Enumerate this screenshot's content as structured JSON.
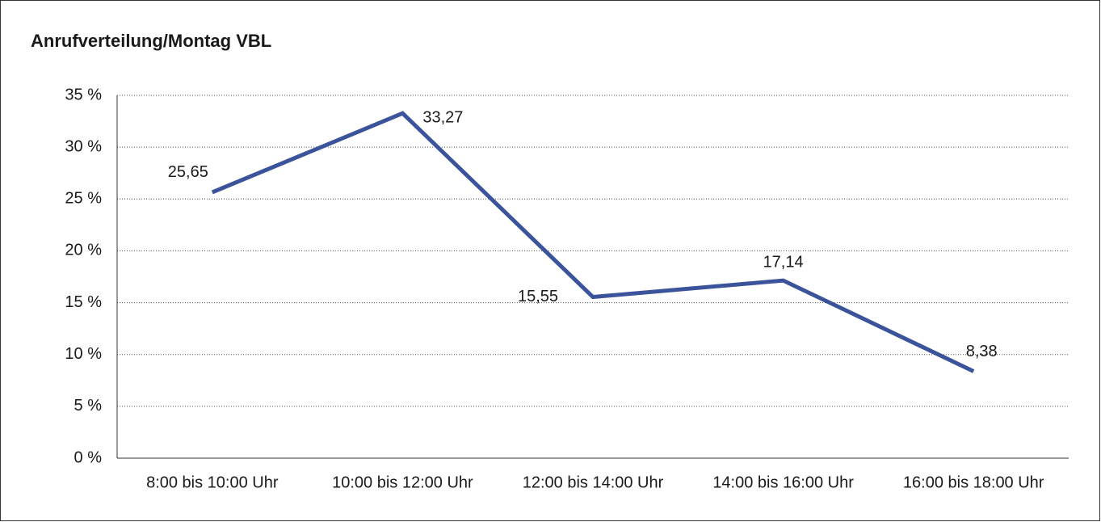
{
  "chart_data": {
    "type": "line",
    "title": "Anrufverteilung/Montag VBL",
    "categories": [
      "8:00 bis 10:00 Uhr",
      "10:00 bis 12:00 Uhr",
      "12:00 bis 14:00 Uhr",
      "14:00 bis 16:00 Uhr",
      "16:00 bis 18:00 Uhr"
    ],
    "series": [
      {
        "color": "#3a539b",
        "values": [
          25.65,
          33.27,
          15.55,
          17.14,
          8.38
        ],
        "value_labels": [
          "25,65",
          "33,27",
          "15,55",
          "17,14",
          "8,38"
        ]
      }
    ],
    "ylim": [
      0,
      35
    ],
    "yticks": [
      {
        "value": 0,
        "label": "0 %"
      },
      {
        "value": 5,
        "label": "5 %"
      },
      {
        "value": 10,
        "label": "10 %"
      },
      {
        "value": 15,
        "label": "15 %"
      },
      {
        "value": 20,
        "label": "20 %"
      },
      {
        "value": 25,
        "label": "25 %"
      },
      {
        "value": 30,
        "label": "30 %"
      },
      {
        "value": 35,
        "label": "35 %"
      }
    ],
    "grid": true
  }
}
